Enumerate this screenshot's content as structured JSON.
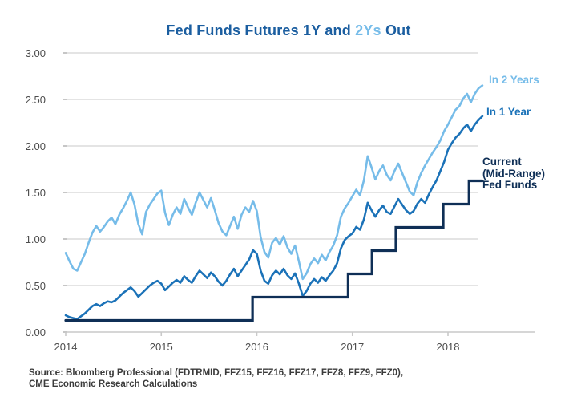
{
  "title": {
    "part1": "Fed Funds Futures 1Y and ",
    "part2": "2Ys",
    "part3": " Out",
    "full": "Fed Funds Futures 1Y and 2Ys Out"
  },
  "colors": {
    "title_dark_blue": "#1B5EA0",
    "light_blue": "#76BCE9",
    "medium_blue": "#1B72B8",
    "navy": "#0F2F56",
    "gridline": "#DBDBDB",
    "axis_line": "#C9C9C9",
    "axis_text": "#4D4D4D",
    "source_text": "#3B3B3B"
  },
  "source": {
    "line1": "Source: Bloomberg Professional (FDTRMID, FFZ15, FFZ16, FFZ17, FFZ8, FFZ9, FFZ0),",
    "line2": "CME Economic Research Calculations"
  },
  "chart_data": {
    "type": "line",
    "title": "Fed Funds Futures 1Y and 2Ys Out",
    "xlabel": "",
    "ylabel": "",
    "x_units": "decimal-year",
    "xlim": [
      2014,
      2018.4
    ],
    "ylim": [
      0,
      3.0
    ],
    "grid": "horizontal",
    "legend_position": "right-of-lines",
    "x_ticks": {
      "values": [
        2014,
        2015,
        2016,
        2017,
        2018
      ],
      "labels": [
        "2014",
        "2015",
        "2016",
        "2017",
        "2018"
      ]
    },
    "y_ticks": {
      "values": [
        0,
        0.5,
        1.0,
        1.5,
        2.0,
        2.5,
        3.0
      ],
      "labels": [
        "0.00",
        "0.50",
        "1.00",
        "1.50",
        "2.00",
        "2.50",
        "3.00"
      ]
    },
    "series": [
      {
        "name": "In 2 Years",
        "legend_lines": [
          "In 2 Years"
        ],
        "color": "#76BCE9",
        "style": "noisy-line",
        "x_start": 2014.0,
        "x_step": 0.04,
        "values": [
          0.85,
          0.76,
          0.68,
          0.66,
          0.75,
          0.84,
          0.96,
          1.07,
          1.14,
          1.08,
          1.13,
          1.19,
          1.23,
          1.16,
          1.26,
          1.33,
          1.41,
          1.5,
          1.37,
          1.16,
          1.05,
          1.29,
          1.37,
          1.43,
          1.49,
          1.52,
          1.28,
          1.15,
          1.26,
          1.34,
          1.27,
          1.43,
          1.34,
          1.26,
          1.39,
          1.5,
          1.42,
          1.34,
          1.44,
          1.31,
          1.17,
          1.08,
          1.04,
          1.14,
          1.24,
          1.11,
          1.26,
          1.34,
          1.29,
          1.41,
          1.3,
          1.02,
          0.86,
          0.8,
          0.96,
          1.01,
          0.94,
          1.03,
          0.91,
          0.84,
          0.93,
          0.76,
          0.57,
          0.63,
          0.73,
          0.79,
          0.74,
          0.83,
          0.77,
          0.86,
          0.93,
          1.04,
          1.24,
          1.33,
          1.39,
          1.46,
          1.53,
          1.47,
          1.63,
          1.89,
          1.77,
          1.64,
          1.73,
          1.79,
          1.69,
          1.63,
          1.73,
          1.81,
          1.71,
          1.61,
          1.51,
          1.47,
          1.61,
          1.71,
          1.79,
          1.86,
          1.93,
          1.99,
          2.06,
          2.16,
          2.23,
          2.31,
          2.39,
          2.43,
          2.51,
          2.56,
          2.47,
          2.56,
          2.62,
          2.65
        ]
      },
      {
        "name": "In 1 Year",
        "legend_lines": [
          "In 1 Year"
        ],
        "color": "#1B72B8",
        "style": "noisy-line",
        "x_start": 2014.0,
        "x_step": 0.04,
        "values": [
          0.18,
          0.16,
          0.15,
          0.14,
          0.17,
          0.2,
          0.24,
          0.28,
          0.3,
          0.28,
          0.31,
          0.33,
          0.32,
          0.34,
          0.38,
          0.42,
          0.45,
          0.48,
          0.44,
          0.38,
          0.42,
          0.46,
          0.5,
          0.53,
          0.55,
          0.52,
          0.45,
          0.49,
          0.53,
          0.56,
          0.53,
          0.6,
          0.56,
          0.53,
          0.6,
          0.66,
          0.62,
          0.58,
          0.64,
          0.6,
          0.54,
          0.5,
          0.55,
          0.62,
          0.68,
          0.6,
          0.66,
          0.72,
          0.78,
          0.88,
          0.84,
          0.66,
          0.55,
          0.52,
          0.61,
          0.66,
          0.62,
          0.68,
          0.61,
          0.57,
          0.63,
          0.52,
          0.39,
          0.44,
          0.52,
          0.57,
          0.53,
          0.59,
          0.55,
          0.61,
          0.66,
          0.74,
          0.9,
          0.99,
          1.03,
          1.06,
          1.13,
          1.1,
          1.21,
          1.39,
          1.31,
          1.24,
          1.31,
          1.36,
          1.29,
          1.27,
          1.35,
          1.43,
          1.37,
          1.31,
          1.27,
          1.3,
          1.38,
          1.43,
          1.39,
          1.48,
          1.56,
          1.63,
          1.73,
          1.83,
          1.96,
          2.03,
          2.09,
          2.13,
          2.19,
          2.23,
          2.16,
          2.23,
          2.28,
          2.32
        ]
      },
      {
        "name": "Current (Mid-Range) Fed Funds",
        "legend_lines": [
          "Current",
          "(Mid-Range)",
          "Fed Funds"
        ],
        "color": "#0F2F56",
        "style": "step-line",
        "points": [
          [
            2014.0,
            0.125
          ],
          [
            2015.955,
            0.125
          ],
          [
            2015.955,
            0.375
          ],
          [
            2016.955,
            0.375
          ],
          [
            2016.955,
            0.625
          ],
          [
            2017.205,
            0.625
          ],
          [
            2017.205,
            0.875
          ],
          [
            2017.455,
            0.875
          ],
          [
            2017.455,
            1.125
          ],
          [
            2017.95,
            1.125
          ],
          [
            2017.95,
            1.375
          ],
          [
            2018.22,
            1.375
          ],
          [
            2018.22,
            1.625
          ],
          [
            2018.36,
            1.625
          ]
        ]
      }
    ]
  }
}
